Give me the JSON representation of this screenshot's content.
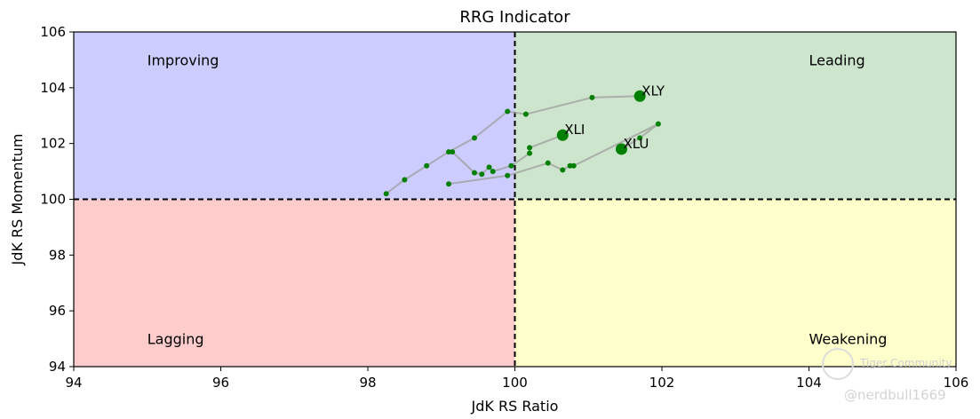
{
  "chart_data": {
    "type": "scatter",
    "title": "RRG Indicator",
    "xlabel": "JdK RS Ratio",
    "ylabel": "JdK RS Momentum",
    "xlim": [
      94,
      106
    ],
    "ylim": [
      94,
      106
    ],
    "xticks": [
      "94",
      "96",
      "98",
      "100",
      "102",
      "104",
      "106"
    ],
    "yticks": [
      "94",
      "96",
      "98",
      "100",
      "102",
      "104",
      "106"
    ],
    "grid": false,
    "center": {
      "x": 100,
      "y": 100
    },
    "quadrants": [
      {
        "name": "Improving",
        "color": "#ccccff"
      },
      {
        "name": "Leading",
        "color": "#cce5cc"
      },
      {
        "name": "Lagging",
        "color": "#ffcccc"
      },
      {
        "name": "Weakening",
        "color": "#ffffcc"
      }
    ],
    "point_color": "#008000",
    "tail_color": "#a0a0a0",
    "series": [
      {
        "name": "XLY",
        "tail": [
          {
            "x": 98.25,
            "y": 100.2
          },
          {
            "x": 98.5,
            "y": 100.7
          },
          {
            "x": 98.8,
            "y": 101.2
          },
          {
            "x": 99.1,
            "y": 101.7
          },
          {
            "x": 99.45,
            "y": 102.2
          },
          {
            "x": 99.9,
            "y": 103.15
          },
          {
            "x": 100.15,
            "y": 103.05
          },
          {
            "x": 101.05,
            "y": 103.65
          }
        ],
        "point": {
          "x": 101.7,
          "y": 103.7
        }
      },
      {
        "name": "XLI",
        "tail": [
          {
            "x": 99.15,
            "y": 101.7
          },
          {
            "x": 99.45,
            "y": 100.95
          },
          {
            "x": 99.55,
            "y": 100.9
          },
          {
            "x": 99.65,
            "y": 101.15
          },
          {
            "x": 99.7,
            "y": 101.0
          },
          {
            "x": 99.95,
            "y": 101.2
          },
          {
            "x": 100.2,
            "y": 101.65
          },
          {
            "x": 100.2,
            "y": 101.85
          }
        ],
        "point": {
          "x": 100.65,
          "y": 102.3
        }
      },
      {
        "name": "XLU",
        "tail": [
          {
            "x": 99.1,
            "y": 100.55
          },
          {
            "x": 99.9,
            "y": 100.85
          },
          {
            "x": 100.45,
            "y": 101.3
          },
          {
            "x": 100.65,
            "y": 101.05
          },
          {
            "x": 100.75,
            "y": 101.2
          },
          {
            "x": 100.8,
            "y": 101.2
          },
          {
            "x": 101.95,
            "y": 102.7
          },
          {
            "x": 101.7,
            "y": 102.2
          }
        ],
        "point": {
          "x": 101.45,
          "y": 101.8
        }
      }
    ]
  },
  "watermark": {
    "community": "Tiger Community",
    "user": "@nerdbull1669"
  }
}
